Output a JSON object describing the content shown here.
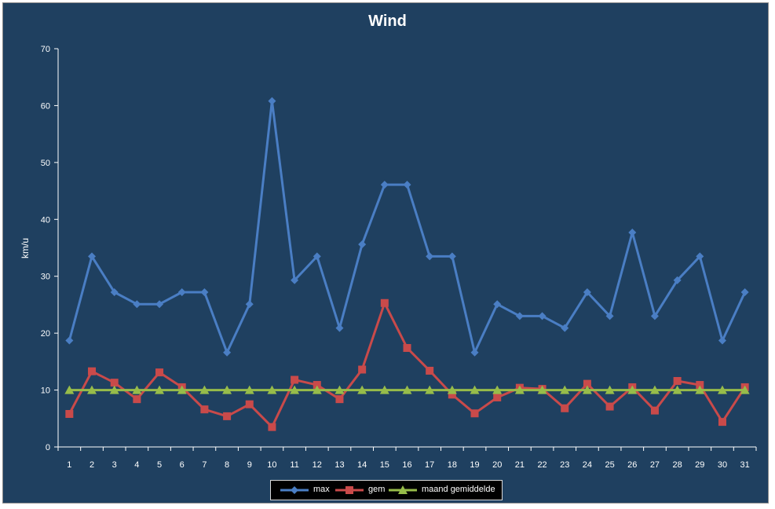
{
  "chart_data": {
    "type": "line",
    "title": "Wind",
    "ylabel": "km/u",
    "xlabel": "",
    "ylim": [
      0,
      70
    ],
    "yticks": [
      0,
      10,
      20,
      30,
      40,
      50,
      60,
      70
    ],
    "grid": false,
    "legend_position": "bottom",
    "categories": [
      "1",
      "2",
      "3",
      "4",
      "5",
      "6",
      "7",
      "8",
      "9",
      "10",
      "11",
      "12",
      "13",
      "14",
      "15",
      "16",
      "17",
      "18",
      "19",
      "20",
      "21",
      "22",
      "23",
      "24",
      "25",
      "26",
      "27",
      "28",
      "29",
      "30",
      "31"
    ],
    "series": [
      {
        "name": "max",
        "color": "#4a7ec4",
        "marker": "diamond",
        "values": [
          18.7,
          33.5,
          27.2,
          25.1,
          25.1,
          27.2,
          27.2,
          16.6,
          25.1,
          60.8,
          29.3,
          33.5,
          20.9,
          35.6,
          46.1,
          46.1,
          33.5,
          33.5,
          16.6,
          25.1,
          23.0,
          23.0,
          20.9,
          27.2,
          23.0,
          37.7,
          23.0,
          29.3,
          33.5,
          18.7,
          27.2
        ]
      },
      {
        "name": "gem",
        "color": "#c94a4a",
        "marker": "square",
        "values": [
          5.8,
          13.3,
          11.3,
          8.4,
          13.1,
          10.5,
          6.6,
          5.4,
          7.5,
          3.5,
          11.8,
          10.9,
          8.4,
          13.6,
          25.3,
          17.4,
          13.4,
          9.2,
          5.9,
          8.7,
          10.4,
          10.2,
          6.8,
          11.1,
          7.1,
          10.5,
          6.4,
          11.6,
          10.9,
          4.4,
          10.5
        ]
      },
      {
        "name": "maand gemiddelde",
        "color": "#97bc4a",
        "marker": "triangle",
        "values": [
          10,
          10,
          10,
          10,
          10,
          10,
          10,
          10,
          10,
          10,
          10,
          10,
          10,
          10,
          10,
          10,
          10,
          10,
          10,
          10,
          10,
          10,
          10,
          10,
          10,
          10,
          10,
          10,
          10,
          10,
          10
        ]
      }
    ]
  }
}
